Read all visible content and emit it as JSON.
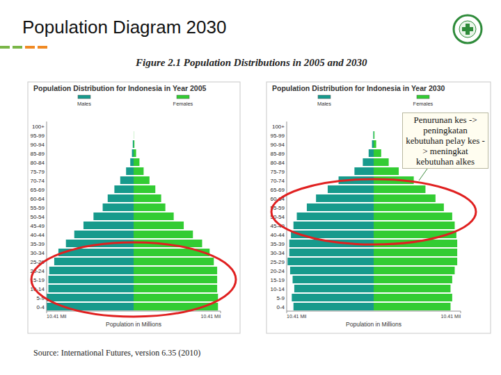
{
  "page": {
    "title": "Population Diagram 2030",
    "figure_caption": "Figure 2.1 Population Distributions in 2005 and 2030",
    "source": "Source: International Futures, version 6.35 (2010)"
  },
  "chart_data": [
    {
      "type": "pyramid",
      "title": "Population Distribution for Indonesia in Year 2005",
      "xlabel": "Population in Millions",
      "categories": [
        "0-4",
        "5-9",
        "10-14",
        "15-19",
        "20-24",
        "25-29",
        "30-34",
        "35-39",
        "40-44",
        "45-49",
        "50-54",
        "55-59",
        "60-64",
        "65-69",
        "70-74",
        "75-79",
        "80-84",
        "85-89",
        "90-94",
        "95-99",
        "100+"
      ],
      "series": [
        {
          "name": "Males",
          "color": "#179a8c",
          "values": [
            10.4,
            10.4,
            10.2,
            10.2,
            10.1,
            9.5,
            9.0,
            8.1,
            7.1,
            6.0,
            4.8,
            3.7,
            3.1,
            2.3,
            1.6,
            0.9,
            0.4,
            0.2,
            0.1,
            0,
            0
          ]
        },
        {
          "name": "Females",
          "color": "#33cc33",
          "values": [
            10.1,
            10.1,
            10.0,
            10.0,
            10.0,
            9.6,
            9.1,
            8.2,
            7.1,
            6.0,
            4.8,
            3.8,
            3.3,
            2.6,
            1.9,
            1.2,
            0.7,
            0.3,
            0.1,
            0.02,
            0
          ]
        }
      ],
      "xlim": [
        0,
        10.41
      ],
      "xticks": [
        {
          "value": 10.41,
          "label": "10.41 Mil"
        }
      ],
      "legend": "top"
    },
    {
      "type": "pyramid",
      "title": "Population Distribution for Indonesia in Year 2030",
      "xlabel": "Population in Millions",
      "annotation": "Penurunan kes -> peningkatan kebutuhan pelay kes -> meningkat kebutuhan alkes",
      "categories": [
        "0-4",
        "5-9",
        "10-14",
        "15-19",
        "20-24",
        "25-29",
        "30-34",
        "35-39",
        "40-44",
        "45-49",
        "50-54",
        "55-59",
        "60-64",
        "65-69",
        "70-74",
        "75-79",
        "80-84",
        "85-89",
        "90-94",
        "95-99",
        "100+"
      ],
      "series": [
        {
          "name": "Males",
          "color": "#179a8c",
          "values": [
            9.6,
            9.8,
            9.5,
            9.7,
            10.0,
            10.3,
            10.1,
            10.1,
            9.9,
            9.6,
            9.2,
            8.0,
            6.9,
            5.5,
            4.2,
            2.3,
            1.3,
            0.6,
            0.2,
            0.05,
            0
          ]
        },
        {
          "name": "Females",
          "color": "#33cc33",
          "values": [
            9.2,
            9.4,
            9.2,
            9.4,
            9.7,
            10.0,
            10.0,
            10.0,
            9.9,
            9.7,
            9.4,
            8.4,
            7.4,
            6.2,
            4.8,
            3.0,
            1.8,
            0.9,
            0.3,
            0.1,
            0
          ]
        }
      ],
      "xlim": [
        0,
        10.41
      ],
      "xticks": [
        {
          "value": 10.41,
          "label": "10.41 Mil"
        }
      ],
      "legend": "top"
    }
  ]
}
